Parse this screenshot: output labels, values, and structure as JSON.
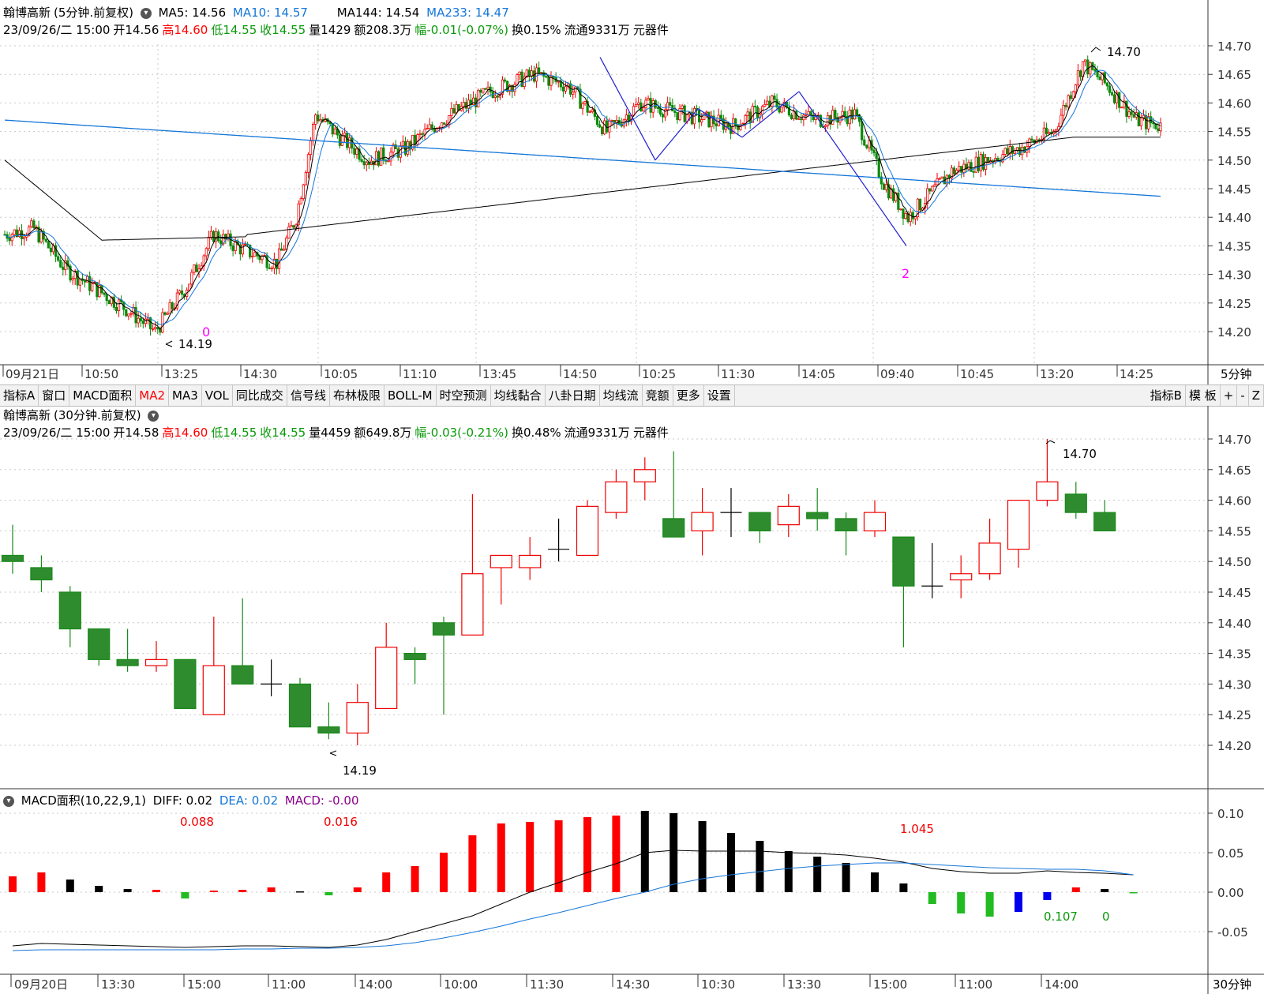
{
  "top_panel": {
    "stock_name": "翰博高新",
    "period_label": "(5分钟.前复权)",
    "ma": [
      {
        "label": "MA5: 14.56",
        "color": "#000000"
      },
      {
        "label": "MA10: 14.57",
        "color": "#1577d8"
      },
      {
        "label": "MA144: 14.54",
        "color": "#000000"
      },
      {
        "label": "MA233: 14.47",
        "color": "#1577d8"
      }
    ],
    "info": {
      "date": "23/09/26/二 15:00",
      "open": "开14.56",
      "high": "高14.60",
      "low": "低14.55",
      "close": "收14.55",
      "vol": "量1429",
      "amount": "额208.3万",
      "change": "幅-0.01(-0.07%)",
      "turnover": "换0.15%",
      "float": "流通9331万",
      "sector": "元器件"
    },
    "y_ticks": [
      "14.70",
      "14.65",
      "14.60",
      "14.55",
      "14.50",
      "14.45",
      "14.40",
      "14.35",
      "14.30",
      "14.25",
      "14.20"
    ],
    "x_ticks": [
      "09月21日",
      "10:50",
      "13:25",
      "14:30",
      "10:05",
      "11:10",
      "13:45",
      "14:50",
      "10:25",
      "11:30",
      "14:05",
      "09:40",
      "10:45",
      "13:20",
      "14:25"
    ],
    "period_tag": "5分钟",
    "annotations": {
      "high": "14.70",
      "low": "14.19",
      "mark0": "0",
      "mark2": "2"
    }
  },
  "toolbar": {
    "items": [
      "指标A",
      "窗口",
      "MACD面积",
      "MA2",
      "MA3",
      "VOL",
      "同比成交",
      "信号线",
      "布林极限",
      "BOLL-M",
      "时空预测",
      "均线黏合",
      "八卦日期",
      "均线流",
      "竞额",
      "更多",
      "设置"
    ],
    "active": "MA2",
    "right_items": [
      "指标B",
      "模 板",
      "+",
      "-",
      "Z"
    ]
  },
  "mid_panel": {
    "stock_name": "翰博高新",
    "period_label": "(30分钟.前复权)",
    "info": {
      "date": "23/09/26/二 15:00",
      "open": "开14.58",
      "high": "高14.60",
      "low": "低14.55",
      "close": "收14.55",
      "vol": "量4459",
      "amount": "额649.8万",
      "change": "幅-0.03(-0.21%)",
      "turnover": "换0.48%",
      "float": "流通9331万",
      "sector": "元器件"
    },
    "y_ticks": [
      "14.70",
      "14.65",
      "14.60",
      "14.55",
      "14.50",
      "14.45",
      "14.40",
      "14.35",
      "14.30",
      "14.25",
      "14.20"
    ],
    "annotations": {
      "high": "14.70",
      "low": "14.19"
    }
  },
  "macd_panel": {
    "title": "MACD面积(10,22,9,1)",
    "diff": "DIFF: 0.02",
    "dea": "DEA: 0.02",
    "macd": "MACD: -0.00",
    "y_ticks": [
      "0.10",
      "0.05",
      "0.00",
      "-0.05"
    ],
    "x_ticks": [
      "09月20日",
      "13:30",
      "15:00",
      "11:00",
      "14:00",
      "10:00",
      "11:30",
      "14:30",
      "10:30",
      "13:30",
      "15:00",
      "11:00",
      "14:00"
    ],
    "period_tag": "30分钟",
    "area_labels": [
      {
        "text": "0.088",
        "color": "#f00000"
      },
      {
        "text": "0.016",
        "color": "#f00000"
      },
      {
        "text": "1.045",
        "color": "#f00000"
      },
      {
        "text": "0.107",
        "color": "#0a9a0a"
      },
      {
        "text": "0",
        "color": "#0a9a0a"
      }
    ]
  },
  "chart_data": [
    {
      "type": "candlestick",
      "title": "翰博高新 (30分钟.前复权)",
      "ylim": [
        14.17,
        14.73
      ],
      "candles": [
        {
          "o": 14.51,
          "h": 14.56,
          "l": 14.48,
          "c": 14.5
        },
        {
          "o": 14.49,
          "h": 14.51,
          "l": 14.45,
          "c": 14.47
        },
        {
          "o": 14.45,
          "h": 14.46,
          "l": 14.36,
          "c": 14.39
        },
        {
          "o": 14.39,
          "h": 14.39,
          "l": 14.33,
          "c": 14.34
        },
        {
          "o": 14.34,
          "h": 14.39,
          "l": 14.32,
          "c": 14.33
        },
        {
          "o": 14.33,
          "h": 14.37,
          "l": 14.32,
          "c": 14.34
        },
        {
          "o": 14.34,
          "h": 14.34,
          "l": 14.26,
          "c": 14.26
        },
        {
          "o": 14.25,
          "h": 14.41,
          "l": 14.25,
          "c": 14.33
        },
        {
          "o": 14.33,
          "h": 14.44,
          "l": 14.3,
          "c": 14.3
        },
        {
          "o": 14.3,
          "h": 14.34,
          "l": 14.28,
          "c": 14.3
        },
        {
          "o": 14.3,
          "h": 14.31,
          "l": 14.23,
          "c": 14.23
        },
        {
          "o": 14.23,
          "h": 14.27,
          "l": 14.21,
          "c": 14.22
        },
        {
          "o": 14.22,
          "h": 14.3,
          "l": 14.2,
          "c": 14.27
        },
        {
          "o": 14.26,
          "h": 14.4,
          "l": 14.26,
          "c": 14.36
        },
        {
          "o": 14.35,
          "h": 14.36,
          "l": 14.3,
          "c": 14.34
        },
        {
          "o": 14.4,
          "h": 14.41,
          "l": 14.25,
          "c": 14.38
        },
        {
          "o": 14.38,
          "h": 14.61,
          "l": 14.38,
          "c": 14.48
        },
        {
          "o": 14.49,
          "h": 14.51,
          "l": 14.43,
          "c": 14.51
        },
        {
          "o": 14.49,
          "h": 14.54,
          "l": 14.47,
          "c": 14.51
        },
        {
          "o": 14.52,
          "h": 14.57,
          "l": 14.5,
          "c": 14.52
        },
        {
          "o": 14.51,
          "h": 14.6,
          "l": 14.51,
          "c": 14.59
        },
        {
          "o": 14.58,
          "h": 14.65,
          "l": 14.57,
          "c": 14.63
        },
        {
          "o": 14.63,
          "h": 14.67,
          "l": 14.6,
          "c": 14.65
        },
        {
          "o": 14.57,
          "h": 14.68,
          "l": 14.54,
          "c": 14.54
        },
        {
          "o": 14.55,
          "h": 14.62,
          "l": 14.51,
          "c": 14.58
        },
        {
          "o": 14.58,
          "h": 14.62,
          "l": 14.54,
          "c": 14.58
        },
        {
          "o": 14.58,
          "h": 14.58,
          "l": 14.53,
          "c": 14.55
        },
        {
          "o": 14.56,
          "h": 14.61,
          "l": 14.54,
          "c": 14.59
        },
        {
          "o": 14.58,
          "h": 14.62,
          "l": 14.55,
          "c": 14.57
        },
        {
          "o": 14.57,
          "h": 14.58,
          "l": 14.51,
          "c": 14.55
        },
        {
          "o": 14.55,
          "h": 14.6,
          "l": 14.54,
          "c": 14.58
        },
        {
          "o": 14.54,
          "h": 14.54,
          "l": 14.36,
          "c": 14.46
        },
        {
          "o": 14.46,
          "h": 14.53,
          "l": 14.44,
          "c": 14.46
        },
        {
          "o": 14.47,
          "h": 14.51,
          "l": 14.44,
          "c": 14.48
        },
        {
          "o": 14.48,
          "h": 14.57,
          "l": 14.47,
          "c": 14.53
        },
        {
          "o": 14.52,
          "h": 14.6,
          "l": 14.49,
          "c": 14.6
        },
        {
          "o": 14.6,
          "h": 14.7,
          "l": 14.59,
          "c": 14.63
        },
        {
          "o": 14.61,
          "h": 14.63,
          "l": 14.57,
          "c": 14.58
        },
        {
          "o": 14.58,
          "h": 14.6,
          "l": 14.55,
          "c": 14.55
        }
      ]
    },
    {
      "type": "bar",
      "title": "MACD面积(10,22,9,1)",
      "ylim": [
        -0.08,
        0.12
      ],
      "values": [
        0.02,
        0.025,
        0.016,
        0.008,
        0.004,
        0.003,
        -0.008,
        0.002,
        0.003,
        0.006,
        0.001,
        -0.004,
        0.006,
        0.025,
        0.033,
        0.05,
        0.072,
        0.087,
        0.089,
        0.091,
        0.095,
        0.097,
        0.103,
        0.1,
        0.09,
        0.075,
        0.065,
        0.052,
        0.045,
        0.037,
        0.025,
        0.011,
        -0.015,
        -0.027,
        -0.031,
        -0.025,
        -0.01,
        0.006,
        0.004,
        -0.001
      ],
      "colors": [
        "red",
        "red",
        "black",
        "black",
        "black",
        "red",
        "green",
        "red",
        "red",
        "red",
        "black",
        "green",
        "red",
        "red",
        "red",
        "red",
        "red",
        "red",
        "red",
        "red",
        "red",
        "red",
        "black",
        "black",
        "black",
        "black",
        "black",
        "black",
        "black",
        "black",
        "black",
        "black",
        "green",
        "green",
        "green",
        "blue",
        "blue",
        "red",
        "black",
        "green"
      ],
      "diff": [
        -0.068,
        -0.065,
        -0.066,
        -0.067,
        -0.068,
        -0.069,
        -0.07,
        -0.069,
        -0.068,
        -0.068,
        -0.069,
        -0.07,
        -0.067,
        -0.06,
        -0.05,
        -0.04,
        -0.03,
        -0.015,
        0.0,
        0.012,
        0.025,
        0.036,
        0.05,
        0.053,
        0.052,
        0.052,
        0.052,
        0.05,
        0.049,
        0.047,
        0.043,
        0.038,
        0.03,
        0.026,
        0.024,
        0.024,
        0.027,
        0.025,
        0.024,
        0.022
      ],
      "dea": [
        -0.074,
        -0.073,
        -0.073,
        -0.073,
        -0.073,
        -0.073,
        -0.073,
        -0.073,
        -0.072,
        -0.072,
        -0.071,
        -0.071,
        -0.07,
        -0.068,
        -0.064,
        -0.058,
        -0.051,
        -0.043,
        -0.034,
        -0.026,
        -0.017,
        -0.008,
        0.0,
        0.01,
        0.017,
        0.022,
        0.026,
        0.03,
        0.033,
        0.035,
        0.037,
        0.037,
        0.035,
        0.033,
        0.031,
        0.03,
        0.029,
        0.029,
        0.027,
        0.022
      ]
    }
  ]
}
